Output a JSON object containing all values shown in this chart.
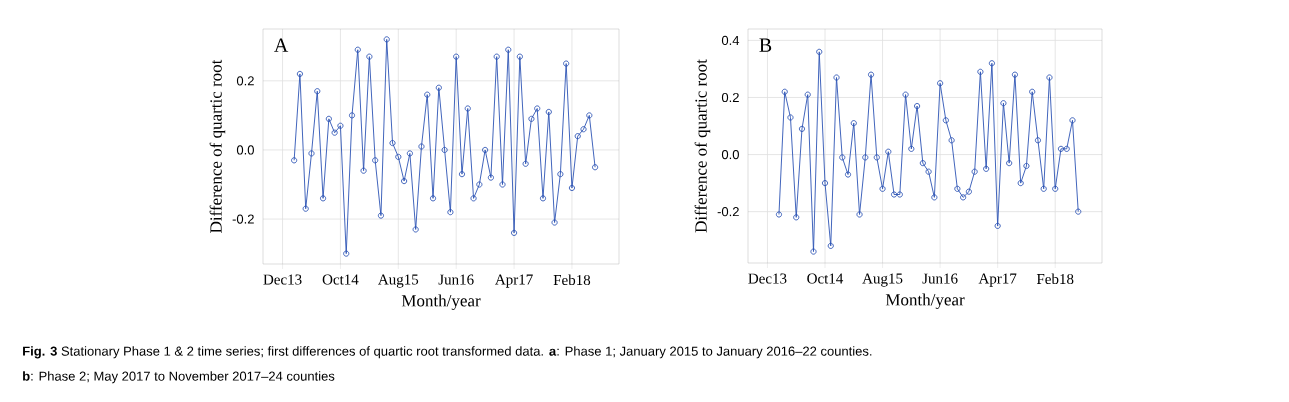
{
  "chart_data": [
    {
      "type": "line",
      "xlabel": "Month/year",
      "ylabel": "Difference of quartic root",
      "color": "#2c54b4",
      "marker": "circle",
      "grid": true,
      "x": [
        "2014-02",
        "2014-03",
        "2014-04",
        "2014-05",
        "2014-06",
        "2014-07",
        "2014-08",
        "2014-09",
        "2014-10",
        "2014-11",
        "2014-12",
        "2015-01",
        "2015-02",
        "2015-03",
        "2015-04",
        "2015-05",
        "2015-06",
        "2015-07",
        "2015-08",
        "2015-09",
        "2015-10",
        "2015-11",
        "2015-12",
        "2016-01",
        "2016-02",
        "2016-03",
        "2016-04",
        "2016-05",
        "2016-06",
        "2016-07",
        "2016-08",
        "2016-09",
        "2016-10",
        "2016-11",
        "2016-12",
        "2017-01",
        "2017-02",
        "2017-03",
        "2017-04",
        "2017-05",
        "2017-06",
        "2017-07",
        "2017-08",
        "2017-09",
        "2017-10",
        "2017-11",
        "2017-12",
        "2018-01",
        "2018-02",
        "2018-03",
        "2018-04",
        "2018-05",
        "2018-06"
      ],
      "values": [
        -0.03,
        0.22,
        -0.17,
        -0.01,
        0.17,
        -0.14,
        0.09,
        0.05,
        0.07,
        -0.3,
        0.1,
        0.29,
        -0.06,
        0.27,
        -0.03,
        -0.19,
        0.32,
        0.02,
        -0.02,
        -0.09,
        -0.01,
        -0.23,
        0.01,
        0.16,
        -0.14,
        0.18,
        0.0,
        -0.18,
        0.27,
        -0.07,
        0.12,
        -0.14,
        -0.1,
        0.0,
        -0.08,
        0.27,
        -0.1,
        0.29,
        -0.24,
        0.27,
        -0.04,
        0.09,
        0.12,
        -0.14,
        0.11,
        -0.21,
        -0.07,
        0.25,
        -0.11,
        0.04,
        0.06,
        0.1,
        -0.05
      ],
      "xlim": [
        "2013-08-20",
        "2018-10-05"
      ],
      "ylim": [
        -0.33,
        0.35
      ],
      "xticks": [
        {
          "value": "2013-12",
          "label": "Dec13"
        },
        {
          "value": "2014-10",
          "label": "Oct14"
        },
        {
          "value": "2015-08",
          "label": "Aug15"
        },
        {
          "value": "2016-06",
          "label": "Jun16"
        },
        {
          "value": "2017-04",
          "label": "Apr17"
        },
        {
          "value": "2018-02",
          "label": "Feb18"
        }
      ],
      "yticks": [
        -0.2,
        {
          "value": 0,
          "label": "0.0"
        },
        0.2
      ],
      "annotations": [
        "A",
        "**Fig. 3** Stationary Phase 1 & 2 time series; first differences of quartic root transformed data. **a**: Phase 1; January 2015 to January 2016–22 counties.",
        "**b**: Phase 2; May 2017 to November 2017–24 counties"
      ]
    },
    {
      "type": "line",
      "xlabel": "Month/year",
      "ylabel": "Difference of quartic root",
      "color": "#2c54b4",
      "marker": "circle",
      "grid": true,
      "x": [
        "2014-02",
        "2014-03",
        "2014-04",
        "2014-05",
        "2014-06",
        "2014-07",
        "2014-08",
        "2014-09",
        "2014-10",
        "2014-11",
        "2014-12",
        "2015-01",
        "2015-02",
        "2015-03",
        "2015-04",
        "2015-05",
        "2015-06",
        "2015-07",
        "2015-08",
        "2015-09",
        "2015-10",
        "2015-11",
        "2015-12",
        "2016-01",
        "2016-02",
        "2016-03",
        "2016-04",
        "2016-05",
        "2016-06",
        "2016-07",
        "2016-08",
        "2016-09",
        "2016-10",
        "2016-11",
        "2016-12",
        "2017-01",
        "2017-02",
        "2017-03",
        "2017-04",
        "2017-05",
        "2017-06",
        "2017-07",
        "2017-08",
        "2017-09",
        "2017-10",
        "2017-11",
        "2017-12",
        "2018-01",
        "2018-02",
        "2018-03",
        "2018-04",
        "2018-05",
        "2018-06"
      ],
      "values": [
        -0.21,
        0.22,
        0.13,
        -0.22,
        0.09,
        0.21,
        -0.34,
        0.36,
        -0.1,
        -0.32,
        0.27,
        -0.01,
        -0.07,
        0.11,
        -0.21,
        -0.01,
        0.28,
        -0.01,
        -0.12,
        0.01,
        -0.14,
        -0.14,
        0.21,
        0.02,
        0.17,
        -0.03,
        -0.06,
        -0.15,
        0.25,
        0.12,
        0.05,
        -0.12,
        -0.15,
        -0.13,
        -0.06,
        0.29,
        -0.05,
        0.32,
        -0.25,
        0.18,
        -0.03,
        0.28,
        -0.1,
        -0.04,
        0.22,
        0.05,
        -0.12,
        0.27,
        -0.12,
        0.02,
        0.02,
        0.12,
        -0.2
      ],
      "xlim": [
        "2013-08-20",
        "2018-10-05"
      ],
      "ylim": [
        -0.38,
        0.44
      ],
      "xticks": [
        {
          "value": "2013-12",
          "label": "Dec13"
        },
        {
          "value": "2014-10",
          "label": "Oct14"
        },
        {
          "value": "2015-08",
          "label": "Aug15"
        },
        {
          "value": "2016-06",
          "label": "Jun16"
        },
        {
          "value": "2017-04",
          "label": "Apr17"
        },
        {
          "value": "2018-02",
          "label": "Feb18"
        }
      ],
      "yticks": [
        -0.2,
        {
          "value": 0,
          "label": "0.0"
        },
        0.2,
        0.4
      ],
      "annotations": [
        "B"
      ]
    }
  ]
}
